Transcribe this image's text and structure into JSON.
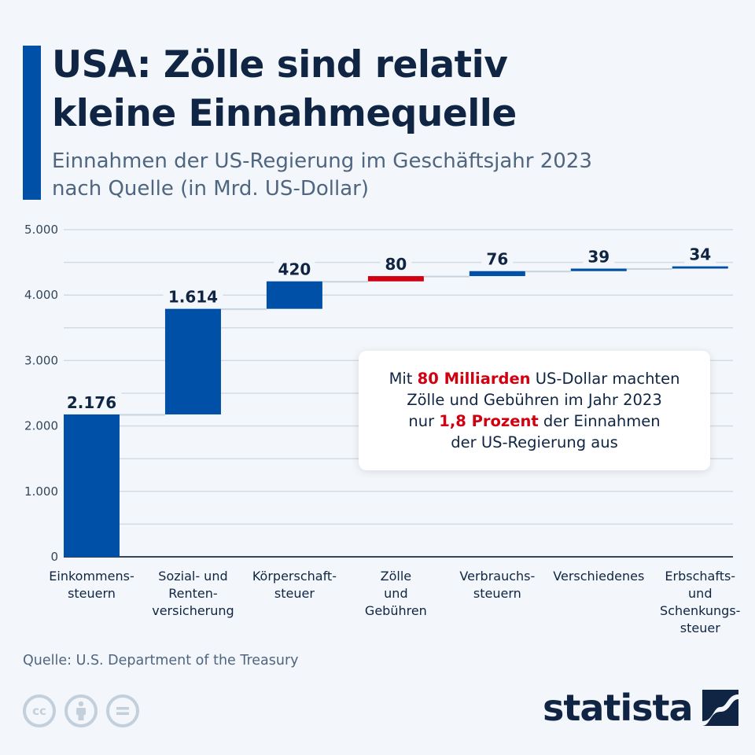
{
  "header": {
    "title_line1": "USA: Zölle sind relativ",
    "title_line2": "kleine Einnahmequelle",
    "subtitle_line1": "Einnahmen der US-Regierung im Geschäftsjahr 2023",
    "subtitle_line2": "nach Quelle (in Mrd. US-Dollar)"
  },
  "callout": {
    "line1_pre": "Mit ",
    "line1_bold": "80 Milliarden",
    "line1_post": " US-Dollar machten",
    "line2": "Zölle und Gebühren im Jahr 2023",
    "line3_pre": "nur ",
    "line3_bold": "1,8 Prozent",
    "line3_post": " der Einnahmen",
    "line4": "der US-Regierung aus"
  },
  "footer": {
    "source": "Quelle: U.S. Department of the Treasury",
    "license_icons": [
      "cc-icon",
      "attribution-icon",
      "no-derivatives-icon"
    ],
    "cc_text": "cc",
    "brand": "statista"
  },
  "colors": {
    "primary": "#0050a8",
    "highlight": "#d00010",
    "text": "#0f2543",
    "grid": "#d3dbe4",
    "background": "#f3f6fa"
  },
  "chart_data": {
    "type": "waterfall",
    "title": "USA: Zölle sind relativ kleine Einnahmequelle",
    "subtitle": "Einnahmen der US-Regierung im Geschäftsjahr 2023 nach Quelle (in Mrd. US-Dollar)",
    "xlabel": "",
    "ylabel": "",
    "ylim": [
      0,
      5000
    ],
    "yticks": [
      0,
      1000,
      2000,
      3000,
      4000,
      5000
    ],
    "ytick_labels": [
      "0",
      "1.000",
      "2.000",
      "3.000",
      "4.000",
      "5.000"
    ],
    "minor_grid_step": 500,
    "grid": true,
    "categories": [
      [
        "Einkommens-",
        "steuern"
      ],
      [
        "Sozial- und",
        "Renten-",
        "versicherung"
      ],
      [
        "Körperschaft-",
        "steuer"
      ],
      [
        "Zölle",
        "und",
        "Gebühren"
      ],
      [
        "Verbrauchs-",
        "steuern"
      ],
      [
        "Verschiedenes"
      ],
      [
        "Erbschafts-",
        "und",
        "Schenkungs-",
        "steuer"
      ]
    ],
    "values": [
      2176,
      1614,
      420,
      80,
      76,
      39,
      34
    ],
    "value_labels": [
      "2.176",
      "1.614",
      "420",
      "80",
      "76",
      "39",
      "34"
    ],
    "highlight_index": 3,
    "source": "U.S. Department of the Treasury"
  }
}
